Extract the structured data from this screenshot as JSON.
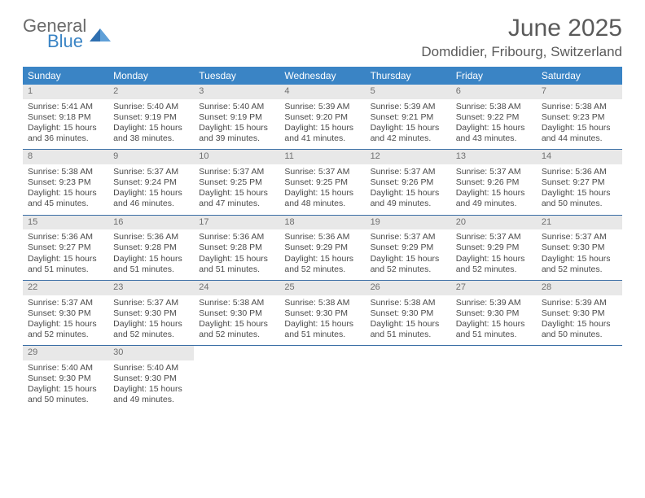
{
  "logo": {
    "general": "General",
    "blue": "Blue"
  },
  "title": "June 2025",
  "location": "Domdidier, Fribourg, Switzerland",
  "colors": {
    "header_bg": "#3a84c5",
    "header_text": "#ffffff",
    "daynum_bg": "#e8e8e8",
    "row_divider": "#3a6ea5",
    "text": "#4a4a4a",
    "title_text": "#5a5a5a",
    "logo_gray": "#6a6a6a",
    "logo_blue": "#3a84c5",
    "page_bg": "#ffffff"
  },
  "fonts": {
    "title_size_pt": 22,
    "location_size_pt": 13,
    "weekday_size_pt": 9,
    "body_size_pt": 8
  },
  "weekdays": [
    "Sunday",
    "Monday",
    "Tuesday",
    "Wednesday",
    "Thursday",
    "Friday",
    "Saturday"
  ],
  "days": [
    {
      "n": "1",
      "sunrise": "5:41 AM",
      "sunset": "9:18 PM",
      "daylight": "15 hours and 36 minutes."
    },
    {
      "n": "2",
      "sunrise": "5:40 AM",
      "sunset": "9:19 PM",
      "daylight": "15 hours and 38 minutes."
    },
    {
      "n": "3",
      "sunrise": "5:40 AM",
      "sunset": "9:19 PM",
      "daylight": "15 hours and 39 minutes."
    },
    {
      "n": "4",
      "sunrise": "5:39 AM",
      "sunset": "9:20 PM",
      "daylight": "15 hours and 41 minutes."
    },
    {
      "n": "5",
      "sunrise": "5:39 AM",
      "sunset": "9:21 PM",
      "daylight": "15 hours and 42 minutes."
    },
    {
      "n": "6",
      "sunrise": "5:38 AM",
      "sunset": "9:22 PM",
      "daylight": "15 hours and 43 minutes."
    },
    {
      "n": "7",
      "sunrise": "5:38 AM",
      "sunset": "9:23 PM",
      "daylight": "15 hours and 44 minutes."
    },
    {
      "n": "8",
      "sunrise": "5:38 AM",
      "sunset": "9:23 PM",
      "daylight": "15 hours and 45 minutes."
    },
    {
      "n": "9",
      "sunrise": "5:37 AM",
      "sunset": "9:24 PM",
      "daylight": "15 hours and 46 minutes."
    },
    {
      "n": "10",
      "sunrise": "5:37 AM",
      "sunset": "9:25 PM",
      "daylight": "15 hours and 47 minutes."
    },
    {
      "n": "11",
      "sunrise": "5:37 AM",
      "sunset": "9:25 PM",
      "daylight": "15 hours and 48 minutes."
    },
    {
      "n": "12",
      "sunrise": "5:37 AM",
      "sunset": "9:26 PM",
      "daylight": "15 hours and 49 minutes."
    },
    {
      "n": "13",
      "sunrise": "5:37 AM",
      "sunset": "9:26 PM",
      "daylight": "15 hours and 49 minutes."
    },
    {
      "n": "14",
      "sunrise": "5:36 AM",
      "sunset": "9:27 PM",
      "daylight": "15 hours and 50 minutes."
    },
    {
      "n": "15",
      "sunrise": "5:36 AM",
      "sunset": "9:27 PM",
      "daylight": "15 hours and 51 minutes."
    },
    {
      "n": "16",
      "sunrise": "5:36 AM",
      "sunset": "9:28 PM",
      "daylight": "15 hours and 51 minutes."
    },
    {
      "n": "17",
      "sunrise": "5:36 AM",
      "sunset": "9:28 PM",
      "daylight": "15 hours and 51 minutes."
    },
    {
      "n": "18",
      "sunrise": "5:36 AM",
      "sunset": "9:29 PM",
      "daylight": "15 hours and 52 minutes."
    },
    {
      "n": "19",
      "sunrise": "5:37 AM",
      "sunset": "9:29 PM",
      "daylight": "15 hours and 52 minutes."
    },
    {
      "n": "20",
      "sunrise": "5:37 AM",
      "sunset": "9:29 PM",
      "daylight": "15 hours and 52 minutes."
    },
    {
      "n": "21",
      "sunrise": "5:37 AM",
      "sunset": "9:30 PM",
      "daylight": "15 hours and 52 minutes."
    },
    {
      "n": "22",
      "sunrise": "5:37 AM",
      "sunset": "9:30 PM",
      "daylight": "15 hours and 52 minutes."
    },
    {
      "n": "23",
      "sunrise": "5:37 AM",
      "sunset": "9:30 PM",
      "daylight": "15 hours and 52 minutes."
    },
    {
      "n": "24",
      "sunrise": "5:38 AM",
      "sunset": "9:30 PM",
      "daylight": "15 hours and 52 minutes."
    },
    {
      "n": "25",
      "sunrise": "5:38 AM",
      "sunset": "9:30 PM",
      "daylight": "15 hours and 51 minutes."
    },
    {
      "n": "26",
      "sunrise": "5:38 AM",
      "sunset": "9:30 PM",
      "daylight": "15 hours and 51 minutes."
    },
    {
      "n": "27",
      "sunrise": "5:39 AM",
      "sunset": "9:30 PM",
      "daylight": "15 hours and 51 minutes."
    },
    {
      "n": "28",
      "sunrise": "5:39 AM",
      "sunset": "9:30 PM",
      "daylight": "15 hours and 50 minutes."
    },
    {
      "n": "29",
      "sunrise": "5:40 AM",
      "sunset": "9:30 PM",
      "daylight": "15 hours and 50 minutes."
    },
    {
      "n": "30",
      "sunrise": "5:40 AM",
      "sunset": "9:30 PM",
      "daylight": "15 hours and 49 minutes."
    }
  ],
  "labels": {
    "sunrise": "Sunrise: ",
    "sunset": "Sunset: ",
    "daylight": "Daylight: "
  }
}
